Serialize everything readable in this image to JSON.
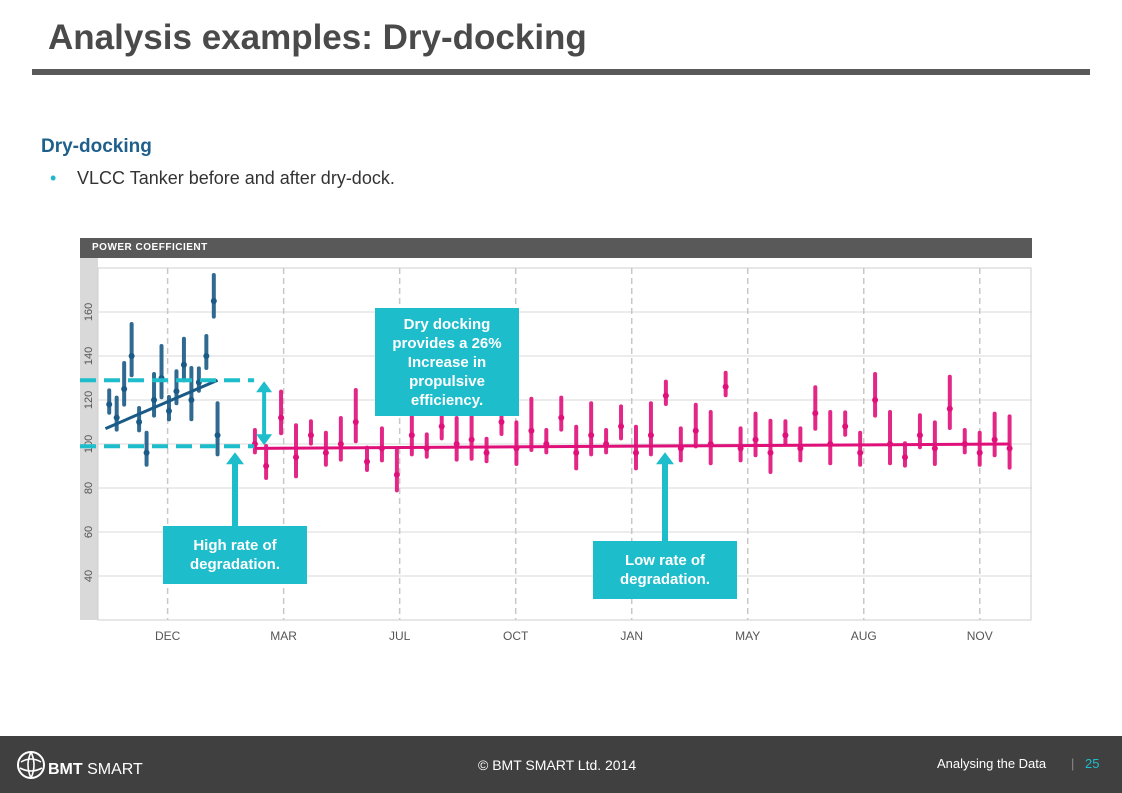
{
  "slide": {
    "title": "Analysis examples: Dry-docking",
    "subheading": "Dry-docking",
    "bullet": "VLCC Tanker before and after dry-dock."
  },
  "chart_header": "POWER COEFFICIENT",
  "callouts": {
    "dry_dock": "Dry docking provides a 26% Increase in propulsive efficiency.",
    "high_rate": "High rate of degradation.",
    "low_rate": "Low rate of degradation."
  },
  "footer": {
    "copyright": "© BMT SMART Ltd. 2014",
    "section": "Analysing the Data",
    "separator": "|",
    "page": "25",
    "brand_bmt": "BMT",
    "brand_smart": "SMART"
  },
  "colors": {
    "before": "#1a5a86",
    "after": "#e0107a",
    "accent": "#1ebdcc",
    "header_bar": "#595959"
  },
  "chart_data": {
    "type": "scatter",
    "title": "POWER COEFFICIENT",
    "xlabel": "",
    "ylabel": "",
    "ylim": [
      20,
      180
    ],
    "yticks": [
      40,
      60,
      80,
      100,
      120,
      140,
      160
    ],
    "xtick_labels": [
      "DEC",
      "MAR",
      "JUL",
      "OCT",
      "JAN",
      "MAY",
      "AUG",
      "NOV"
    ],
    "grid": true,
    "series": [
      {
        "role": "before-dry-dock",
        "color": "#1a5a86",
        "points": [
          {
            "x": 0.3,
            "y": 118
          },
          {
            "x": 0.5,
            "y": 112
          },
          {
            "x": 0.7,
            "y": 125
          },
          {
            "x": 0.9,
            "y": 140
          },
          {
            "x": 1.1,
            "y": 110
          },
          {
            "x": 1.3,
            "y": 96
          },
          {
            "x": 1.5,
            "y": 120
          },
          {
            "x": 1.7,
            "y": 130
          },
          {
            "x": 1.9,
            "y": 115
          },
          {
            "x": 2.1,
            "y": 124
          },
          {
            "x": 2.3,
            "y": 136
          },
          {
            "x": 2.5,
            "y": 120
          },
          {
            "x": 2.7,
            "y": 128
          },
          {
            "x": 2.9,
            "y": 140
          },
          {
            "x": 3.1,
            "y": 165
          },
          {
            "x": 3.2,
            "y": 104
          }
        ],
        "trend": [
          {
            "x": 0.2,
            "y": 107
          },
          {
            "x": 3.2,
            "y": 129
          }
        ]
      },
      {
        "role": "after-dry-dock",
        "color": "#e0107a",
        "points": [
          {
            "x": 4.2,
            "y": 100
          },
          {
            "x": 4.5,
            "y": 90
          },
          {
            "x": 4.9,
            "y": 112
          },
          {
            "x": 5.3,
            "y": 94
          },
          {
            "x": 5.7,
            "y": 104
          },
          {
            "x": 6.1,
            "y": 96
          },
          {
            "x": 6.5,
            "y": 100
          },
          {
            "x": 6.9,
            "y": 110
          },
          {
            "x": 7.2,
            "y": 92
          },
          {
            "x": 7.6,
            "y": 98
          },
          {
            "x": 8.0,
            "y": 86
          },
          {
            "x": 8.4,
            "y": 104
          },
          {
            "x": 8.8,
            "y": 98
          },
          {
            "x": 9.2,
            "y": 108
          },
          {
            "x": 9.6,
            "y": 100
          },
          {
            "x": 10.0,
            "y": 102
          },
          {
            "x": 10.4,
            "y": 96
          },
          {
            "x": 10.8,
            "y": 110
          },
          {
            "x": 11.2,
            "y": 98
          },
          {
            "x": 11.6,
            "y": 106
          },
          {
            "x": 12.0,
            "y": 100
          },
          {
            "x": 12.4,
            "y": 112
          },
          {
            "x": 12.8,
            "y": 96
          },
          {
            "x": 13.2,
            "y": 104
          },
          {
            "x": 13.6,
            "y": 100
          },
          {
            "x": 14.0,
            "y": 108
          },
          {
            "x": 14.4,
            "y": 96
          },
          {
            "x": 14.8,
            "y": 104
          },
          {
            "x": 15.2,
            "y": 122
          },
          {
            "x": 15.6,
            "y": 98
          },
          {
            "x": 16.0,
            "y": 106
          },
          {
            "x": 16.4,
            "y": 100
          },
          {
            "x": 16.8,
            "y": 126
          },
          {
            "x": 17.2,
            "y": 98
          },
          {
            "x": 17.6,
            "y": 102
          },
          {
            "x": 18.0,
            "y": 96
          },
          {
            "x": 18.4,
            "y": 104
          },
          {
            "x": 18.8,
            "y": 98
          },
          {
            "x": 19.2,
            "y": 114
          },
          {
            "x": 19.6,
            "y": 100
          },
          {
            "x": 20.0,
            "y": 108
          },
          {
            "x": 20.4,
            "y": 96
          },
          {
            "x": 20.8,
            "y": 120
          },
          {
            "x": 21.2,
            "y": 100
          },
          {
            "x": 21.6,
            "y": 94
          },
          {
            "x": 22.0,
            "y": 104
          },
          {
            "x": 22.4,
            "y": 98
          },
          {
            "x": 22.8,
            "y": 116
          },
          {
            "x": 23.2,
            "y": 100
          },
          {
            "x": 23.6,
            "y": 96
          },
          {
            "x": 24.0,
            "y": 102
          },
          {
            "x": 24.4,
            "y": 98
          }
        ],
        "trend": [
          {
            "x": 4.2,
            "y": 98
          },
          {
            "x": 24.4,
            "y": 100
          }
        ]
      }
    ],
    "reference_levels": [
      {
        "y": 129,
        "x_from": 0,
        "x_to": 4.5
      },
      {
        "y": 99,
        "x_from": 0,
        "x_to": 4.5
      }
    ]
  }
}
